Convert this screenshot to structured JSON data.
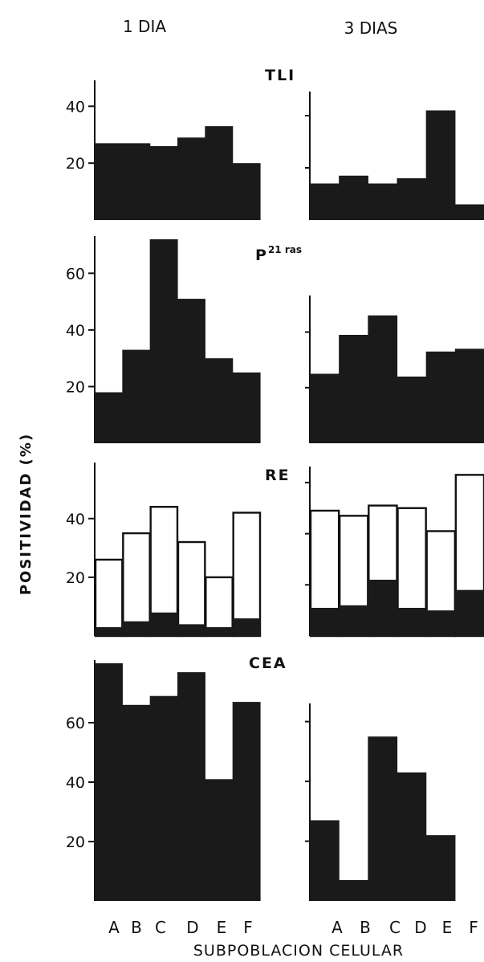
{
  "column_headers": [
    "1 DIA",
    "3 DIAS"
  ],
  "ylabel": "POSITIVIDAD  (%)",
  "xlabel": "SUBPOBLACION  CELULAR",
  "categories": [
    "A",
    "B",
    "C",
    "D",
    "E",
    "F"
  ],
  "colors": {
    "ink": "#111111",
    "fill": "#1a1a1a",
    "open": "#ffffff"
  },
  "chart_data": [
    {
      "type": "bar",
      "title": "TLI",
      "categories": [
        "A",
        "B",
        "C",
        "D",
        "E",
        "F"
      ],
      "panels": [
        {
          "header": "1 DIA",
          "ylim": [
            0,
            48
          ],
          "yticks": [
            20,
            40
          ],
          "values": [
            27,
            27,
            26,
            29,
            33,
            20
          ]
        },
        {
          "header": "3 DIAS",
          "ylim": [
            0,
            48
          ],
          "yticks": [],
          "values": [
            14,
            17,
            14,
            16,
            42,
            6
          ]
        }
      ]
    },
    {
      "type": "bar",
      "title": "P21 ras",
      "categories": [
        "A",
        "B",
        "C",
        "D",
        "E",
        "F"
      ],
      "panels": [
        {
          "header": "1 DIA",
          "ylim": [
            0,
            72
          ],
          "yticks": [
            20,
            40,
            60
          ],
          "values": [
            18,
            33,
            72,
            51,
            30,
            25
          ]
        },
        {
          "header": "3 DIAS",
          "ylim": [
            0,
            52
          ],
          "yticks": [],
          "values": [
            25,
            39,
            46,
            24,
            33,
            34
          ]
        }
      ]
    },
    {
      "type": "bar",
      "title": "RE",
      "note": "stacked: filled lower part and open upper part",
      "categories": [
        "A",
        "B",
        "C",
        "D",
        "E",
        "F"
      ],
      "panels": [
        {
          "header": "1 DIA",
          "ylim": [
            0,
            58
          ],
          "yticks": [
            20,
            40
          ],
          "series": [
            {
              "values": [
                3,
                5,
                8,
                4,
                3,
                6
              ],
              "style": "filled"
            },
            {
              "values": [
                26,
                35,
                44,
                32,
                20,
                42
              ],
              "style": "open",
              "meaning": "total"
            }
          ]
        },
        {
          "header": "3 DIAS",
          "ylim": [
            0,
            65
          ],
          "yticks": [],
          "series": [
            {
              "values": [
                11,
                12,
                22,
                11,
                10,
                18
              ],
              "style": "filled"
            },
            {
              "values": [
                49,
                47,
                51,
                50,
                41,
                63
              ],
              "style": "open",
              "meaning": "total"
            }
          ]
        }
      ]
    },
    {
      "type": "bar",
      "title": "CEA",
      "categories": [
        "A",
        "B",
        "C",
        "D",
        "E",
        "F"
      ],
      "panels": [
        {
          "header": "1 DIA",
          "ylim": [
            0,
            80
          ],
          "yticks": [
            20,
            40,
            60
          ],
          "values": [
            80,
            66,
            69,
            77,
            41,
            67
          ]
        },
        {
          "header": "3 DIAS",
          "ylim": [
            0,
            65
          ],
          "yticks": [],
          "values": [
            27,
            7,
            55,
            43,
            22,
            0
          ]
        }
      ]
    }
  ]
}
